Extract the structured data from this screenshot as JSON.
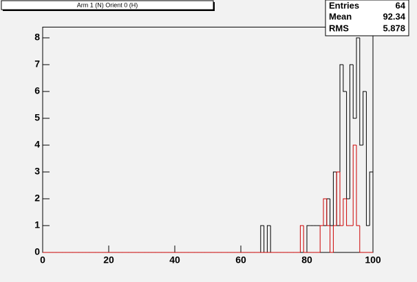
{
  "chart_data": {
    "type": "histogram",
    "title": "Arm 1 (N) Orient 0 (H)",
    "bins": [
      0,
      1,
      2,
      3,
      4,
      5,
      6,
      7,
      8,
      9,
      10,
      11,
      12,
      13,
      14,
      15,
      16,
      17,
      18,
      19,
      20,
      21,
      22,
      23,
      24,
      25,
      26,
      27,
      28,
      29,
      30,
      31,
      32,
      33,
      34,
      35,
      36,
      37,
      38,
      39,
      40,
      41,
      42,
      43,
      44,
      45,
      46,
      47,
      48,
      49,
      50,
      51,
      52,
      53,
      54,
      55,
      56,
      57,
      58,
      59,
      60,
      61,
      62,
      63,
      64,
      65,
      66,
      67,
      68,
      69,
      70,
      71,
      72,
      73,
      74,
      75,
      76,
      77,
      78,
      79,
      80,
      81,
      82,
      83,
      84,
      85,
      86,
      87,
      88,
      89,
      90,
      91,
      92,
      93,
      94,
      95,
      96,
      97,
      98,
      99,
      100
    ],
    "series": [
      {
        "color": "#000000",
        "values": [
          0,
          0,
          0,
          0,
          0,
          0,
          0,
          0,
          0,
          0,
          0,
          0,
          0,
          0,
          0,
          0,
          0,
          0,
          0,
          0,
          0,
          0,
          0,
          0,
          0,
          0,
          0,
          0,
          0,
          0,
          0,
          0,
          0,
          0,
          0,
          0,
          0,
          0,
          0,
          0,
          0,
          0,
          0,
          0,
          0,
          0,
          0,
          0,
          0,
          0,
          0,
          0,
          0,
          0,
          0,
          0,
          0,
          0,
          0,
          0,
          0,
          0,
          0,
          0,
          0,
          0,
          1,
          0,
          1,
          0,
          0,
          0,
          0,
          0,
          0,
          0,
          0,
          0,
          0,
          0,
          1,
          1,
          1,
          1,
          1,
          1,
          2,
          1,
          3,
          1,
          7,
          6,
          2,
          7,
          5,
          8,
          4,
          6,
          1,
          3
        ]
      },
      {
        "color": "#cc0000",
        "values": [
          0,
          0,
          0,
          0,
          0,
          0,
          0,
          0,
          0,
          0,
          0,
          0,
          0,
          0,
          0,
          0,
          0,
          0,
          0,
          0,
          0,
          0,
          0,
          0,
          0,
          0,
          0,
          0,
          0,
          0,
          0,
          0,
          0,
          0,
          0,
          0,
          0,
          0,
          0,
          0,
          0,
          0,
          0,
          0,
          0,
          0,
          0,
          0,
          0,
          0,
          0,
          0,
          0,
          0,
          0,
          0,
          0,
          0,
          0,
          0,
          0,
          0,
          0,
          0,
          0,
          0,
          0,
          0,
          0,
          0,
          0,
          0,
          0,
          0,
          0,
          0,
          0,
          0,
          1,
          0,
          0,
          0,
          0,
          0,
          1,
          2,
          1,
          0,
          1,
          3,
          1,
          2,
          1,
          1,
          4,
          1,
          0,
          0,
          0,
          0
        ]
      }
    ],
    "xlim": [
      0,
      100
    ],
    "ylim": [
      0,
      8.4
    ],
    "xticks": [
      0,
      20,
      40,
      60,
      80,
      100
    ],
    "yticks": [
      0,
      1,
      2,
      3,
      4,
      5,
      6,
      7,
      8
    ]
  },
  "stats": {
    "labels": [
      "Entries",
      "Mean",
      "RMS"
    ],
    "values": [
      64,
      92.34,
      5.878
    ]
  }
}
